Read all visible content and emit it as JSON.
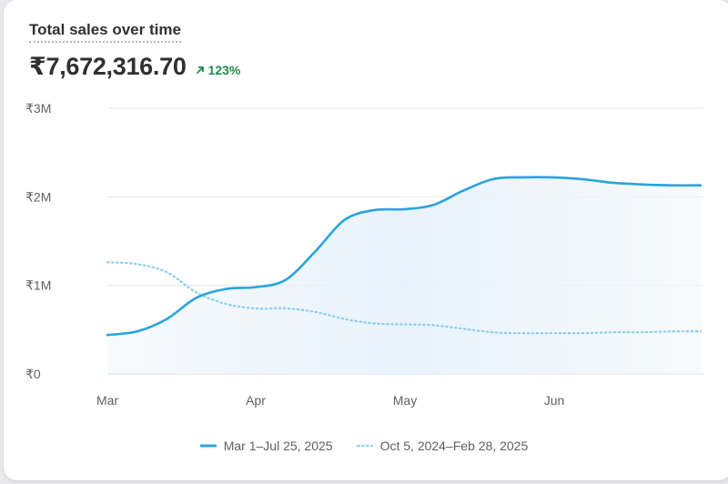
{
  "title": "Total sales over time",
  "total": "₹7,672,316.70",
  "change": "123%",
  "colors": {
    "current": "#2aa3df",
    "previous": "#8ccdf0",
    "grid": "#e6e6e8",
    "axis": "#dcdcdf",
    "tick": "#616166",
    "change": "#1f8a4c"
  },
  "chart_data": {
    "type": "line",
    "x_ticks": [
      "Mar",
      "Apr",
      "May",
      "Jun"
    ],
    "y_ticks": [
      "₹3M",
      "₹2M",
      "₹1M",
      "₹0"
    ],
    "ylim": [
      0,
      3000000
    ],
    "grid": true,
    "legend_position": "bottom-center",
    "series": [
      {
        "name": "Mar 1–Jul 25, 2025",
        "style": "solid",
        "points": [
          [
            0,
            440000
          ],
          [
            0.2,
            480000
          ],
          [
            0.4,
            620000
          ],
          [
            0.6,
            860000
          ],
          [
            0.8,
            960000
          ],
          [
            1.0,
            980000
          ],
          [
            1.2,
            1060000
          ],
          [
            1.4,
            1380000
          ],
          [
            1.6,
            1740000
          ],
          [
            1.8,
            1850000
          ],
          [
            2.0,
            1860000
          ],
          [
            2.2,
            1910000
          ],
          [
            2.4,
            2070000
          ],
          [
            2.6,
            2200000
          ],
          [
            2.8,
            2220000
          ],
          [
            3.0,
            2220000
          ],
          [
            3.2,
            2200000
          ],
          [
            3.4,
            2160000
          ],
          [
            3.6,
            2140000
          ],
          [
            3.8,
            2130000
          ],
          [
            4.0,
            2130000
          ]
        ]
      },
      {
        "name": "Oct 5, 2024–Feb 28, 2025",
        "style": "dotted",
        "points": [
          [
            0,
            1260000
          ],
          [
            0.2,
            1240000
          ],
          [
            0.4,
            1150000
          ],
          [
            0.6,
            920000
          ],
          [
            0.8,
            790000
          ],
          [
            1.0,
            740000
          ],
          [
            1.2,
            740000
          ],
          [
            1.4,
            700000
          ],
          [
            1.6,
            620000
          ],
          [
            1.8,
            570000
          ],
          [
            2.0,
            560000
          ],
          [
            2.2,
            550000
          ],
          [
            2.4,
            510000
          ],
          [
            2.6,
            470000
          ],
          [
            2.8,
            460000
          ],
          [
            3.0,
            460000
          ],
          [
            3.2,
            460000
          ],
          [
            3.4,
            470000
          ],
          [
            3.6,
            470000
          ],
          [
            3.8,
            480000
          ],
          [
            4.0,
            480000
          ]
        ]
      }
    ]
  }
}
